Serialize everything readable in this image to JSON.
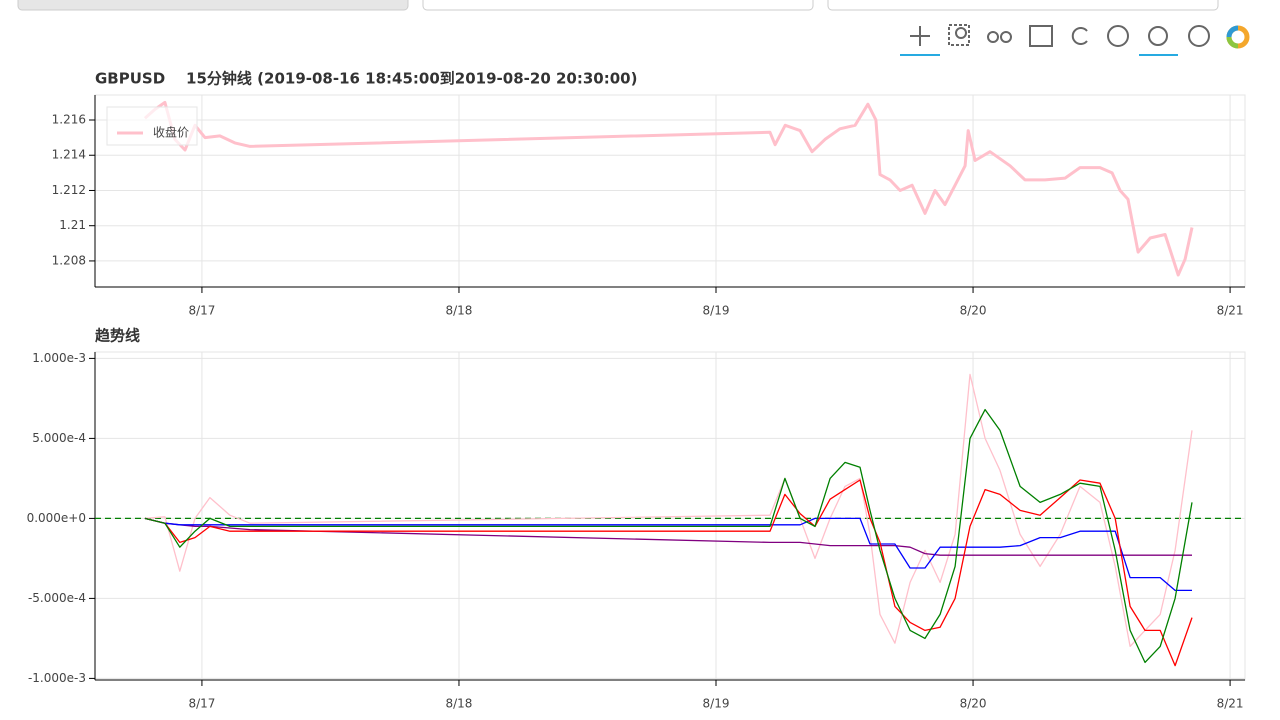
{
  "chart_data": [
    {
      "type": "line",
      "title": "GBPUSD    15分钟线 (2019-08-16 18:45:00到2019-08-20 20:30:00)",
      "legend": "top_left",
      "grid": true,
      "xlim": [
        16.584,
        21.058
      ],
      "xticks": [
        {
          "value": 17,
          "label": "8/17"
        },
        {
          "value": 18,
          "label": "8/18"
        },
        {
          "value": 19,
          "label": "8/19"
        },
        {
          "value": 20,
          "label": "8/20"
        },
        {
          "value": 21,
          "label": "8/21"
        }
      ],
      "ylim": [
        1.20652,
        1.21742
      ],
      "yticks": [
        1.208,
        1.21,
        1.212,
        1.214,
        1.216
      ],
      "series": [
        {
          "name": "收盘价",
          "color": "#ffc0cb",
          "x": [
            16.778,
            16.817,
            16.856,
            16.895,
            16.934,
            16.973,
            17.012,
            17.07,
            17.128,
            17.187,
            19.21,
            19.23,
            19.269,
            19.327,
            19.374,
            19.424,
            19.482,
            19.541,
            19.591,
            19.622,
            19.638,
            19.677,
            19.716,
            19.763,
            19.813,
            19.852,
            19.891,
            19.93,
            19.969,
            19.981,
            20.008,
            20.066,
            20.144,
            20.202,
            20.28,
            20.358,
            20.416,
            20.494,
            20.541,
            20.572,
            20.603,
            20.642,
            20.689,
            20.747,
            20.774,
            20.798,
            20.825,
            20.852
          ],
          "values": [
            1.2161,
            1.2166,
            1.217,
            1.2149,
            1.2143,
            1.2157,
            1.215,
            1.2151,
            1.2147,
            1.2145,
            1.2153,
            1.2146,
            1.2157,
            1.2154,
            1.2142,
            1.2149,
            1.2155,
            1.2157,
            1.2169,
            1.216,
            1.2129,
            1.2126,
            1.212,
            1.2123,
            1.2107,
            1.212,
            1.2112,
            1.2123,
            1.2134,
            1.2154,
            1.2137,
            1.2142,
            1.2134,
            1.2126,
            1.2126,
            1.2127,
            1.2133,
            1.2133,
            1.213,
            1.212,
            1.2115,
            1.2085,
            1.2093,
            1.2095,
            1.2083,
            1.2072,
            1.2081,
            1.2099
          ]
        }
      ]
    },
    {
      "type": "line",
      "title": "趋势线",
      "grid": true,
      "hline": 0,
      "hline_color": "#008000",
      "xlim": [
        16.584,
        21.058
      ],
      "xticks": [
        {
          "value": 17,
          "label": "8/17"
        },
        {
          "value": 18,
          "label": "8/18"
        },
        {
          "value": 19,
          "label": "8/19"
        },
        {
          "value": 20,
          "label": "8/20"
        },
        {
          "value": 21,
          "label": "8/21"
        }
      ],
      "ylim": [
        -0.00101,
        0.00104
      ],
      "yticks": [
        {
          "value": -0.001,
          "label": "-1.000e-3"
        },
        {
          "value": -0.0005,
          "label": "-5.000e-4"
        },
        {
          "value": 0,
          "label": "0.000e+0"
        },
        {
          "value": 0.0005,
          "label": "5.000e-4"
        },
        {
          "value": 0.001,
          "label": "1.000e-3"
        }
      ],
      "x": [
        16.778,
        16.856,
        16.914,
        16.973,
        17.031,
        17.109,
        17.187,
        19.21,
        19.268,
        19.327,
        19.385,
        19.444,
        19.502,
        19.56,
        19.599,
        19.638,
        19.696,
        19.755,
        19.813,
        19.872,
        19.93,
        19.988,
        20.047,
        20.105,
        20.183,
        20.261,
        20.339,
        20.416,
        20.494,
        20.553,
        20.611,
        20.669,
        20.728,
        20.786,
        20.852
      ],
      "series": [
        {
          "color": "#ffc0cb",
          "values": [
            0,
            1e-05,
            -0.00033,
            0,
            0.00013,
            2e-05,
            -3e-05,
            2e-05,
            0.00025,
            0,
            -0.00025,
            0,
            0.0002,
            0.00025,
            -0.0001,
            -0.0006,
            -0.00078,
            -0.0004,
            -0.0002,
            -0.0004,
            -0.0001,
            0.0009,
            0.0005,
            0.0003,
            -0.0001,
            -0.0003,
            -0.0001,
            0.0002,
            0.0001,
            -0.0003,
            -0.0008,
            -0.0007,
            -0.0006,
            -0.0002,
            0.00055
          ]
        },
        {
          "color": "#800080",
          "values": [
            0,
            -3e-05,
            -4e-05,
            -5e-05,
            -5e-05,
            -6e-05,
            -7e-05,
            -0.00015,
            -0.00015,
            -0.00015,
            -0.00016,
            -0.00017,
            -0.00017,
            -0.00017,
            -0.00017,
            -0.00017,
            -0.00017,
            -0.00018,
            -0.00022,
            -0.00023,
            -0.00023,
            -0.00023,
            -0.00023,
            -0.00023,
            -0.00023,
            -0.00023,
            -0.00023,
            -0.00023,
            -0.00023,
            -0.00023,
            -0.00023,
            -0.00023,
            -0.00023,
            -0.00023,
            -0.00023
          ]
        },
        {
          "color": "#0000ff",
          "values": [
            0,
            -3e-05,
            -4e-05,
            -4e-05,
            -4e-05,
            -4e-05,
            -4e-05,
            -4e-05,
            -4e-05,
            -4e-05,
            0,
            0,
            0,
            0,
            -0.00016,
            -0.00016,
            -0.00016,
            -0.00031,
            -0.00031,
            -0.00018,
            -0.00018,
            -0.00018,
            -0.00018,
            -0.00018,
            -0.00017,
            -0.00012,
            -0.00012,
            -8e-05,
            -8e-05,
            -8e-05,
            -0.00037,
            -0.00037,
            -0.00037,
            -0.00045,
            -0.00045
          ]
        },
        {
          "color": "#ff0000",
          "values": [
            0,
            -3e-05,
            -0.00015,
            -0.00012,
            -5e-05,
            -8e-05,
            -8e-05,
            -8e-05,
            0.00015,
            3e-05,
            -5e-05,
            0.00012,
            0.00018,
            0.00024,
            0,
            -0.00015,
            -0.00055,
            -0.00065,
            -0.0007,
            -0.00068,
            -0.0005,
            -5e-05,
            0.00018,
            0.00015,
            5e-05,
            2e-05,
            0.00013,
            0.00024,
            0.00022,
            0,
            -0.00055,
            -0.0007,
            -0.0007,
            -0.00092,
            -0.00062
          ]
        },
        {
          "color": "#008000",
          "values": [
            0,
            -3e-05,
            -0.00018,
            -8e-05,
            0,
            -5e-05,
            -5e-05,
            -5e-05,
            0.00025,
            0,
            -5e-05,
            0.00025,
            0.00035,
            0.00032,
            5e-05,
            -0.0002,
            -0.0005,
            -0.0007,
            -0.00075,
            -0.0006,
            -0.0003,
            0.0005,
            0.00068,
            0.00055,
            0.0002,
            0.0001,
            0.00015,
            0.00022,
            0.0002,
            -0.0002,
            -0.0007,
            -0.0009,
            -0.0008,
            -0.0005,
            0.0001
          ]
        }
      ]
    }
  ]
}
